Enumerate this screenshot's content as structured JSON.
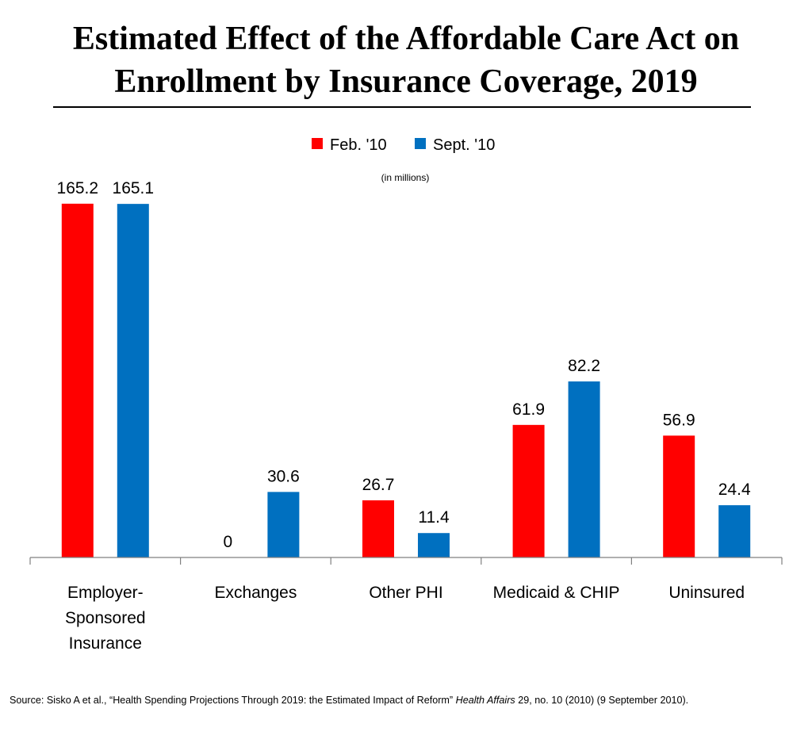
{
  "title_lines": [
    "Estimated Effect of the Affordable Care Act on",
    "Enrollment by Insurance Coverage, 2019"
  ],
  "source": {
    "prefix": "Source: Sisko A et al., “Health Spending Projections Through 2019: the Estimated Impact of Reform” ",
    "journal": "Health Affairs",
    "suffix": " 29, no. 10 (2010) (9 September 2010)."
  },
  "chart_data": {
    "type": "bar",
    "unit_label": "(in millions)",
    "categories": [
      [
        "Employer-",
        "Sponsored",
        "Insurance"
      ],
      [
        "Exchanges"
      ],
      [
        "Other PHI"
      ],
      [
        "Medicaid & CHIP"
      ],
      [
        "Uninsured"
      ]
    ],
    "series": [
      {
        "name": "Feb. '10",
        "color": "#ff0000",
        "values": [
          165.2,
          0,
          26.7,
          61.9,
          56.9
        ]
      },
      {
        "name": "Sept. '10",
        "color": "#0070c0",
        "values": [
          165.1,
          30.6,
          11.4,
          82.2,
          24.4
        ]
      }
    ],
    "ylim": [
      0,
      170
    ],
    "legend_position": "top-center",
    "grid": false
  }
}
